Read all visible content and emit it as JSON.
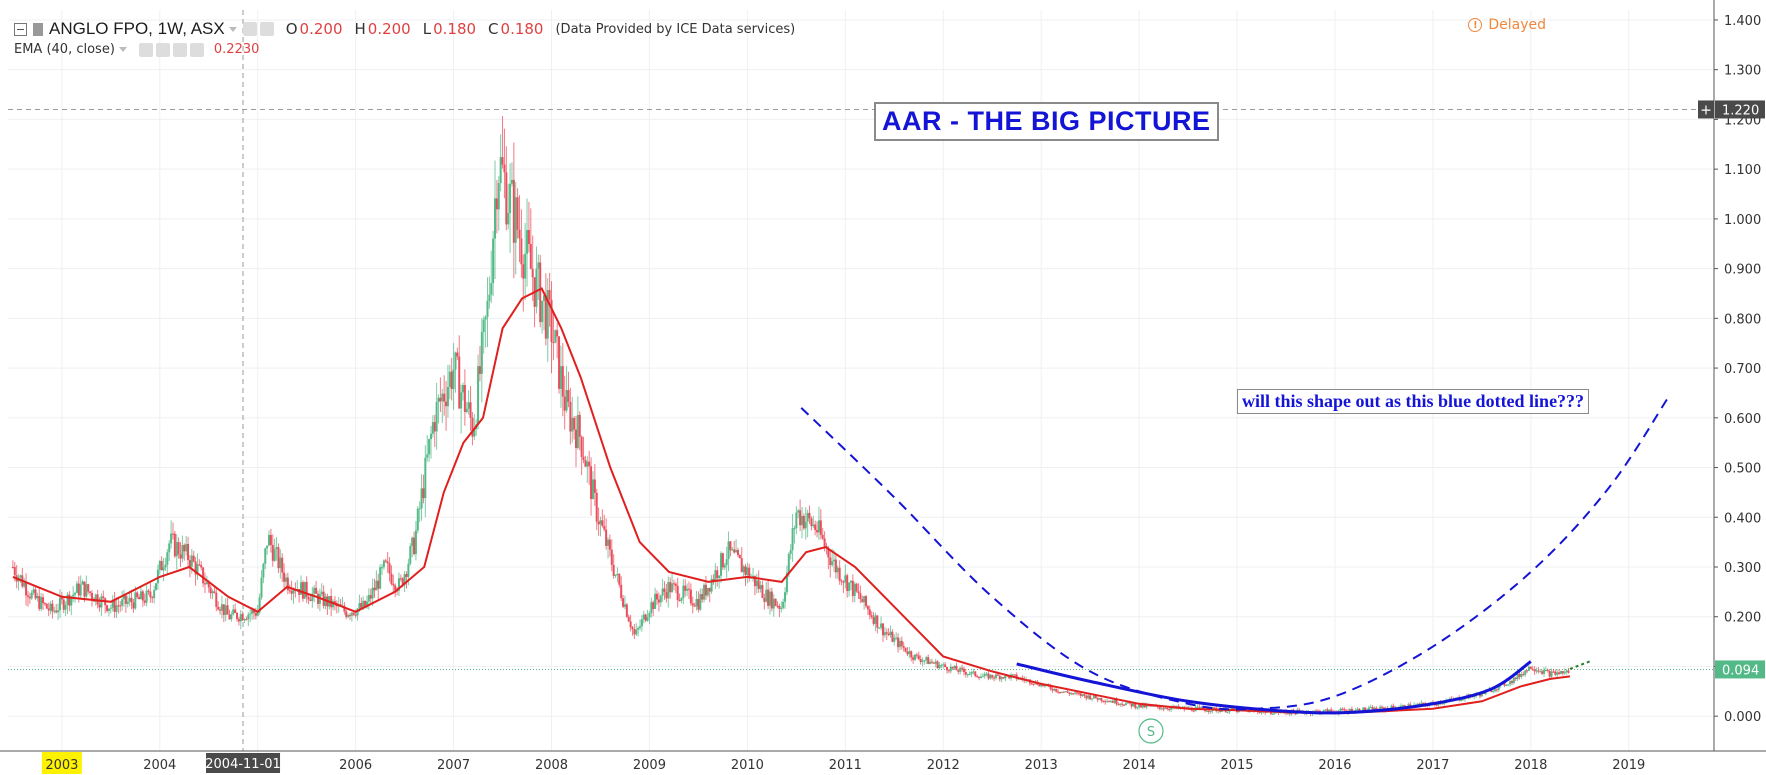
{
  "header": {
    "symbol": "ANGLO FPO, 1W, ASX",
    "open_label": "O",
    "open_value": "0.200",
    "high_label": "H",
    "high_value": "0.200",
    "low_label": "L",
    "low_value": "0.180",
    "close_label": "C",
    "close_value": "0.180",
    "source": "(Data Provided by ICE Data services)"
  },
  "indicator": {
    "label": "EMA (40, close)",
    "value": "0.2230"
  },
  "status": {
    "delayed": "Delayed"
  },
  "annotations": {
    "title": "AAR - THE BIG PICTURE",
    "note": "will this shape out as this blue dotted line???"
  },
  "colors": {
    "up": "#53b987",
    "down": "#eb4d5c",
    "ema": "#e0201f",
    "drawing": "#1414d6",
    "crosshair_label": "#4a4a4a",
    "last_price": "#53b987"
  },
  "chart_data": {
    "type": "candlestick",
    "title": "ANGLO FPO, 1W, ASX",
    "x_ticks": [
      "2003",
      "2004",
      "2004-11-01",
      "2006",
      "2007",
      "2008",
      "2009",
      "2010",
      "2011",
      "2012",
      "2013",
      "2014",
      "2015",
      "2016",
      "2017",
      "2018",
      "2019"
    ],
    "highlighted_x_tick": "2003",
    "crosshair_x_label": "2004-11-01",
    "y_ticks": [
      "1.400",
      "1.300",
      "1.200",
      "1.100",
      "1.000",
      "0.900",
      "0.800",
      "0.700",
      "0.600",
      "0.500",
      "0.400",
      "0.300",
      "0.200",
      "0.100",
      "0.000"
    ],
    "ylim": [
      -0.07,
      1.42
    ],
    "xlim": [
      2002.45,
      2019.85
    ],
    "crosshair_y_label": "1.220",
    "last_price_label": "0.094",
    "price_path": [
      [
        2002.5,
        0.3
      ],
      [
        2002.7,
        0.24
      ],
      [
        2002.9,
        0.21
      ],
      [
        2003.2,
        0.26
      ],
      [
        2003.5,
        0.22
      ],
      [
        2003.9,
        0.24
      ],
      [
        2004.1,
        0.35
      ],
      [
        2004.3,
        0.32
      ],
      [
        2004.5,
        0.26
      ],
      [
        2004.7,
        0.2
      ],
      [
        2005.0,
        0.21
      ],
      [
        2005.1,
        0.36
      ],
      [
        2005.3,
        0.27
      ],
      [
        2005.6,
        0.24
      ],
      [
        2005.9,
        0.21
      ],
      [
        2006.1,
        0.22
      ],
      [
        2006.3,
        0.3
      ],
      [
        2006.45,
        0.26
      ],
      [
        2006.6,
        0.35
      ],
      [
        2006.8,
        0.6
      ],
      [
        2007.0,
        0.7
      ],
      [
        2007.2,
        0.58
      ],
      [
        2007.35,
        0.82
      ],
      [
        2007.45,
        1.12
      ],
      [
        2007.6,
        1.02
      ],
      [
        2007.75,
        0.92
      ],
      [
        2008.0,
        0.78
      ],
      [
        2008.15,
        0.62
      ],
      [
        2008.3,
        0.56
      ],
      [
        2008.45,
        0.42
      ],
      [
        2008.6,
        0.32
      ],
      [
        2008.85,
        0.16
      ],
      [
        2009.0,
        0.22
      ],
      [
        2009.2,
        0.26
      ],
      [
        2009.5,
        0.23
      ],
      [
        2009.8,
        0.33
      ],
      [
        2010.0,
        0.29
      ],
      [
        2010.2,
        0.24
      ],
      [
        2010.35,
        0.22
      ],
      [
        2010.5,
        0.41
      ],
      [
        2010.7,
        0.38
      ],
      [
        2010.9,
        0.3
      ],
      [
        2011.1,
        0.25
      ],
      [
        2011.4,
        0.17
      ],
      [
        2011.7,
        0.12
      ],
      [
        2012.0,
        0.1
      ],
      [
        2012.4,
        0.08
      ],
      [
        2012.7,
        0.08
      ],
      [
        2012.9,
        0.07
      ],
      [
        2013.2,
        0.05
      ],
      [
        2013.6,
        0.035
      ],
      [
        2014.0,
        0.02
      ],
      [
        2014.5,
        0.015
      ],
      [
        2015.0,
        0.012
      ],
      [
        2015.5,
        0.008
      ],
      [
        2016.0,
        0.01
      ],
      [
        2016.5,
        0.015
      ],
      [
        2017.0,
        0.025
      ],
      [
        2017.5,
        0.045
      ],
      [
        2017.8,
        0.07
      ],
      [
        2018.0,
        0.1
      ],
      [
        2018.2,
        0.085
      ],
      [
        2018.4,
        0.09
      ]
    ],
    "ema_series": {
      "name": "EMA (40, close)",
      "points": [
        [
          2002.5,
          0.28
        ],
        [
          2003.0,
          0.24
        ],
        [
          2003.5,
          0.23
        ],
        [
          2004.0,
          0.28
        ],
        [
          2004.3,
          0.3
        ],
        [
          2004.7,
          0.24
        ],
        [
          2005.0,
          0.21
        ],
        [
          2005.3,
          0.26
        ],
        [
          2005.6,
          0.24
        ],
        [
          2006.0,
          0.21
        ],
        [
          2006.4,
          0.25
        ],
        [
          2006.7,
          0.3
        ],
        [
          2006.9,
          0.45
        ],
        [
          2007.1,
          0.55
        ],
        [
          2007.3,
          0.6
        ],
        [
          2007.5,
          0.78
        ],
        [
          2007.7,
          0.84
        ],
        [
          2007.9,
          0.86
        ],
        [
          2008.1,
          0.78
        ],
        [
          2008.3,
          0.68
        ],
        [
          2008.6,
          0.5
        ],
        [
          2008.9,
          0.35
        ],
        [
          2009.2,
          0.29
        ],
        [
          2009.6,
          0.27
        ],
        [
          2010.0,
          0.28
        ],
        [
          2010.35,
          0.27
        ],
        [
          2010.6,
          0.33
        ],
        [
          2010.8,
          0.34
        ],
        [
          2011.1,
          0.3
        ],
        [
          2011.5,
          0.22
        ],
        [
          2012.0,
          0.12
        ],
        [
          2012.5,
          0.09
        ],
        [
          2013.0,
          0.065
        ],
        [
          2013.5,
          0.045
        ],
        [
          2014.0,
          0.025
        ],
        [
          2014.5,
          0.015
        ],
        [
          2015.0,
          0.012
        ],
        [
          2015.5,
          0.008
        ],
        [
          2016.0,
          0.006
        ],
        [
          2016.5,
          0.01
        ],
        [
          2017.0,
          0.015
        ],
        [
          2017.5,
          0.03
        ],
        [
          2017.9,
          0.06
        ],
        [
          2018.2,
          0.075
        ],
        [
          2018.4,
          0.08
        ]
      ]
    },
    "drawings": {
      "solid_blue_arc": [
        [
          2012.75,
          0.105
        ],
        [
          2013.5,
          0.07
        ],
        [
          2014.5,
          0.03
        ],
        [
          2015.5,
          0.01
        ],
        [
          2016.2,
          0.008
        ],
        [
          2017.0,
          0.025
        ],
        [
          2017.6,
          0.055
        ],
        [
          2018.0,
          0.11
        ]
      ],
      "dashed_blue_arc": [
        [
          2010.55,
          0.62
        ],
        [
          2011.5,
          0.44
        ],
        [
          2012.5,
          0.24
        ],
        [
          2013.5,
          0.09
        ],
        [
          2014.5,
          0.025
        ],
        [
          2015.2,
          0.015
        ],
        [
          2016.0,
          0.04
        ],
        [
          2017.0,
          0.14
        ],
        [
          2018.0,
          0.29
        ],
        [
          2018.8,
          0.46
        ],
        [
          2019.4,
          0.64
        ]
      ],
      "green_dashed_tail": [
        [
          2018.4,
          0.095
        ],
        [
          2018.6,
          0.11
        ]
      ]
    },
    "grid": true,
    "legend": "top-left"
  }
}
